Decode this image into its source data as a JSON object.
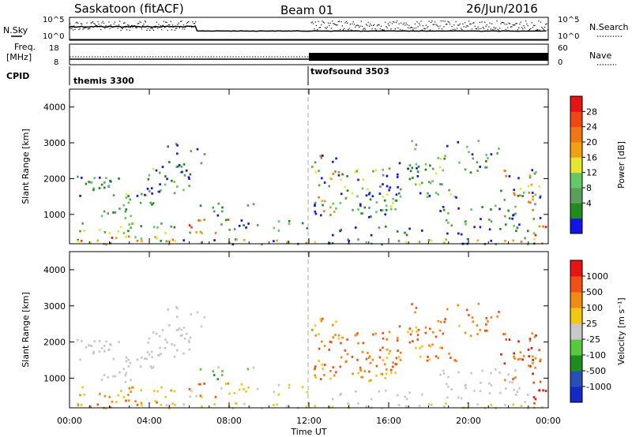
{
  "header": {
    "station": "Saskatoon (fitACF)",
    "beam": "Beam 01",
    "date": "26/Jun/2016"
  },
  "strip_nsky": {
    "left_label": "N.Sky",
    "right_label": "N.Search",
    "left_ticks": [
      "10^5",
      "10^0"
    ],
    "right_ticks": [
      "10^5",
      "10^0"
    ]
  },
  "strip_freq": {
    "left_label_1": "Freq.",
    "left_label_2": "[MHz]",
    "left_ticks": [
      "18",
      "8"
    ],
    "right_label": "Nave",
    "right_ticks": [
      "60",
      "0"
    ]
  },
  "cpid": {
    "label": "CPID",
    "segments": [
      {
        "name": "themis 3300",
        "start_hour": 0
      },
      {
        "name": "twofsound 3503",
        "start_hour": 12
      }
    ]
  },
  "colors": {
    "power_scale": [
      "#1414e6",
      "#1e8c1e",
      "#5aa05a",
      "#64c864",
      "#e6e632",
      "#f0a014",
      "#f07814",
      "#f04614",
      "#e61414"
    ],
    "velocity_scale": [
      "#1428c8",
      "#2850b4",
      "#1e8c1e",
      "#5ac83c",
      "#c8c8c8",
      "#f0c814",
      "#f08c14",
      "#f05014",
      "#e61414"
    ]
  },
  "chart_data": [
    {
      "type": "heatmap",
      "name": "power",
      "xlabel": "",
      "ylabel": "Slant Range [km]",
      "xlim": [
        0,
        24
      ],
      "ylim": [
        180,
        4500
      ],
      "yticks": [
        "4000",
        "3000",
        "2000",
        "1000"
      ],
      "colorbar_label": "Power [dB]",
      "colorbar_ticks": [
        "28",
        "24",
        "20",
        "16",
        "12",
        "8",
        "4"
      ],
      "grid": false
    },
    {
      "type": "heatmap",
      "name": "velocity",
      "xlabel": "Time UT",
      "ylabel": "Slant Range [km]",
      "xlim": [
        0,
        24
      ],
      "ylim": [
        180,
        4500
      ],
      "xticks": [
        "00:00",
        "04:00",
        "08:00",
        "12:00",
        "16:00",
        "20:00",
        "00:00"
      ],
      "yticks": [
        "4000",
        "3000",
        "2000",
        "1000"
      ],
      "colorbar_label": "Velocity [m s⁻¹]",
      "colorbar_ticks": [
        "1000",
        "500",
        "100",
        "25",
        "-25",
        "-100",
        "-500",
        "-1000"
      ],
      "grid": false
    }
  ]
}
